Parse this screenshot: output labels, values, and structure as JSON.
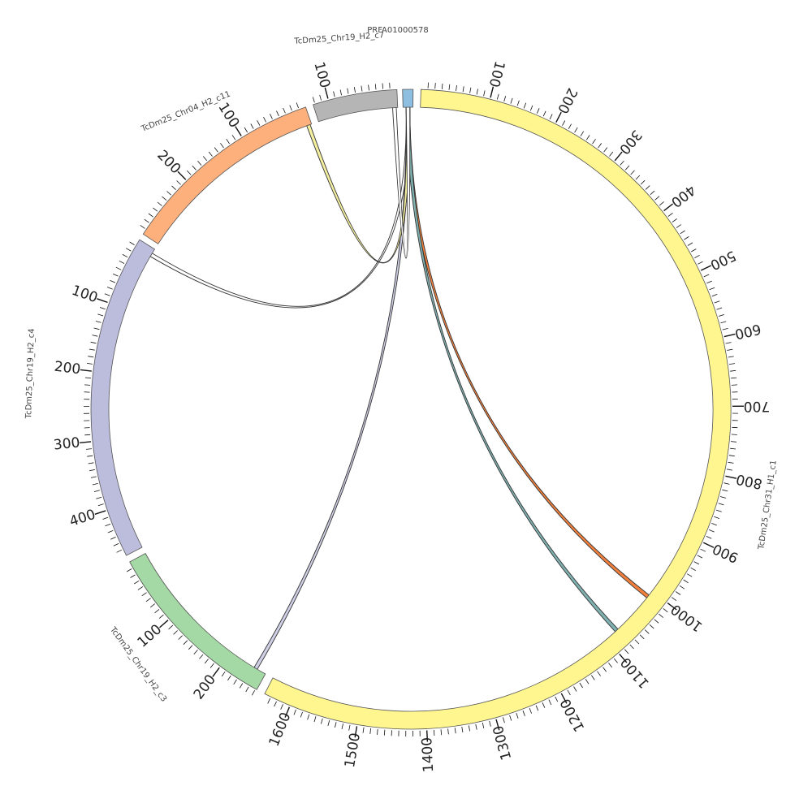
{
  "chart_data": {
    "type": "chord",
    "title": "",
    "sequences": [
      {
        "name": "PRFA01000578",
        "color": "#8fbfe0",
        "label_ticks": []
      },
      {
        "name": "TcDm25_Chr31_H1_c1",
        "color": "#fff68f",
        "label_ticks": [
          "100",
          "200",
          "300",
          "400",
          "500",
          "600",
          "700",
          "800",
          "900",
          "1000",
          "1100",
          "1200",
          "1300",
          "1400",
          "1500",
          "1600"
        ]
      },
      {
        "name": "TcDm25_Chr19_H2_c3",
        "color": "#a4d8a4",
        "label_ticks": [
          "100",
          "200"
        ]
      },
      {
        "name": "TcDm25_Chr19_H2_c4",
        "color": "#bcbcdc",
        "label_ticks": [
          "100",
          "200",
          "300",
          "400"
        ]
      },
      {
        "name": "TcDm25_Chr04_H2_c11",
        "color": "#fdb07c",
        "label_ticks": [
          "100",
          "200"
        ]
      },
      {
        "name": "TcDm25_Chr19_H2_c7",
        "color": "#b5b5b5",
        "label_ticks": [
          "100"
        ]
      }
    ],
    "links": [
      {
        "from": "PRFA01000578",
        "to": "TcDm25_Chr31_H1_c1",
        "to_pos": 1010,
        "color": "#f07f3c"
      },
      {
        "from": "PRFA01000578",
        "to": "TcDm25_Chr31_H1_c1",
        "to_pos": 1080,
        "color": "#7fb0b0"
      },
      {
        "from": "PRFA01000578",
        "to": "TcDm25_Chr19_H2_c4",
        "to_pos": 10,
        "color": "#ffffff"
      },
      {
        "from": "PRFA01000578",
        "to": "TcDm25_Chr19_H2_c3",
        "to_pos": 245,
        "color": "#cfcfe6"
      },
      {
        "from": "PRFA01000578",
        "to": "TcDm25_Chr04_H2_c11",
        "to_pos": 5,
        "color": "#f5f0a0"
      },
      {
        "from": "PRFA01000578",
        "to": "TcDm25_Chr19_H2_c7",
        "to_pos": 5,
        "color": "#ffffff"
      }
    ]
  }
}
